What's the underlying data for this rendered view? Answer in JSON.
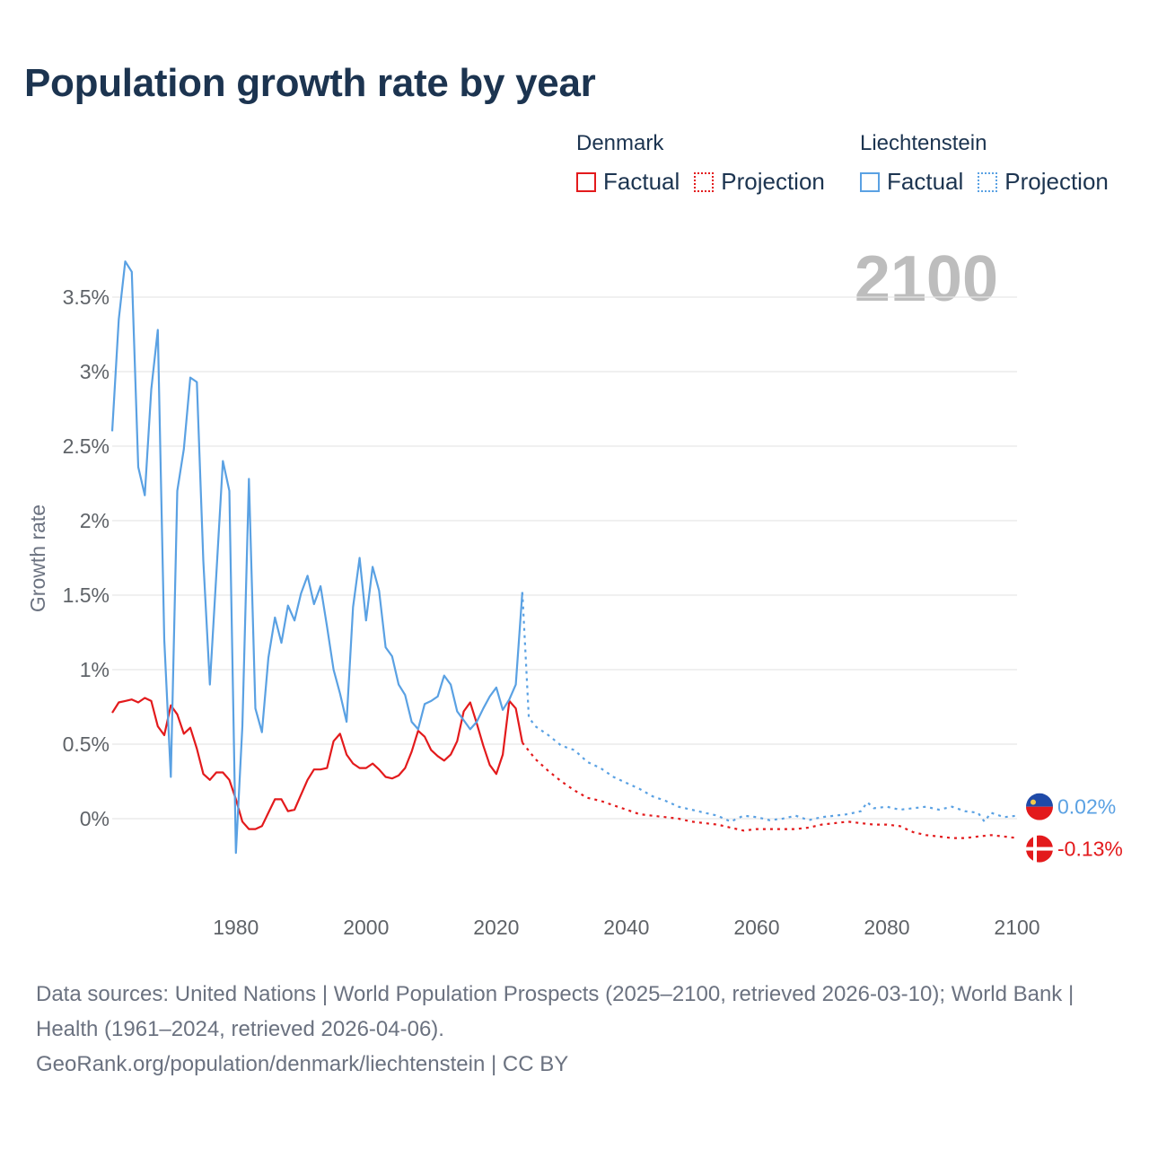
{
  "title": "Population growth rate by year",
  "year_display": "2100",
  "legend": {
    "groups": [
      {
        "name": "Denmark",
        "color": "#e31a1c",
        "factual_label": "Factual",
        "projection_label": "Projection"
      },
      {
        "name": "Liechtenstein",
        "color": "#5aa1e3",
        "factual_label": "Factual",
        "projection_label": "Projection"
      }
    ]
  },
  "footer": {
    "sources": "Data sources: United Nations | World Population Prospects (2025–2100, retrieved 2026-03-10); World Bank | Health (1961–2024, retrieved 2026-04-06).",
    "credit": "GeoRank.org/population/denmark/liechtenstein | CC BY"
  },
  "chart_data": {
    "type": "line",
    "title": "Population growth rate by year",
    "xlabel": "",
    "ylabel": "Growth rate",
    "xlim": [
      1961,
      2100
    ],
    "ylim": [
      -0.5,
      3.75
    ],
    "x_ticks": [
      1980,
      2000,
      2020,
      2040,
      2060,
      2080,
      2100
    ],
    "y_ticks": [
      0,
      0.5,
      1,
      1.5,
      2,
      2.5,
      3,
      3.5
    ],
    "y_tick_labels": [
      "0%",
      "0.5%",
      "1%",
      "1.5%",
      "2%",
      "2.5%",
      "3%",
      "3.5%"
    ],
    "grid": true,
    "series": [
      {
        "name": "Denmark",
        "color": "#e31a1c",
        "end_label": "-0.13%",
        "factual": {
          "x": [
            1961,
            1962,
            1963,
            1964,
            1965,
            1966,
            1967,
            1968,
            1969,
            1970,
            1971,
            1972,
            1973,
            1974,
            1975,
            1976,
            1977,
            1978,
            1979,
            1980,
            1981,
            1982,
            1983,
            1984,
            1985,
            1986,
            1987,
            1988,
            1989,
            1990,
            1991,
            1992,
            1993,
            1994,
            1995,
            1996,
            1997,
            1998,
            1999,
            2000,
            2001,
            2002,
            2003,
            2004,
            2005,
            2006,
            2007,
            2008,
            2009,
            2010,
            2011,
            2012,
            2013,
            2014,
            2015,
            2016,
            2017,
            2018,
            2019,
            2020,
            2021,
            2022,
            2023,
            2024
          ],
          "y": [
            0.71,
            0.78,
            0.79,
            0.8,
            0.78,
            0.81,
            0.79,
            0.62,
            0.56,
            0.76,
            0.7,
            0.57,
            0.61,
            0.47,
            0.3,
            0.26,
            0.31,
            0.31,
            0.26,
            0.13,
            -0.02,
            -0.07,
            -0.07,
            -0.05,
            0.04,
            0.13,
            0.13,
            0.05,
            0.06,
            0.16,
            0.26,
            0.33,
            0.33,
            0.34,
            0.52,
            0.57,
            0.43,
            0.37,
            0.34,
            0.34,
            0.37,
            0.33,
            0.28,
            0.27,
            0.29,
            0.34,
            0.45,
            0.59,
            0.55,
            0.46,
            0.42,
            0.39,
            0.43,
            0.52,
            0.72,
            0.78,
            0.64,
            0.49,
            0.36,
            0.3,
            0.43,
            0.79,
            0.74,
            0.51
          ]
        },
        "projection": {
          "x": [
            2024,
            2026,
            2028,
            2030,
            2032,
            2034,
            2036,
            2038,
            2040,
            2042,
            2044,
            2046,
            2048,
            2050,
            2052,
            2054,
            2056,
            2058,
            2060,
            2062,
            2064,
            2066,
            2068,
            2070,
            2072,
            2074,
            2076,
            2078,
            2080,
            2082,
            2084,
            2086,
            2088,
            2090,
            2092,
            2094,
            2096,
            2098,
            2100
          ],
          "y": [
            0.51,
            0.4,
            0.32,
            0.25,
            0.19,
            0.14,
            0.12,
            0.09,
            0.06,
            0.03,
            0.02,
            0.01,
            0.0,
            -0.02,
            -0.03,
            -0.04,
            -0.06,
            -0.08,
            -0.07,
            -0.07,
            -0.07,
            -0.07,
            -0.06,
            -0.04,
            -0.03,
            -0.02,
            -0.03,
            -0.04,
            -0.04,
            -0.05,
            -0.09,
            -0.11,
            -0.12,
            -0.13,
            -0.13,
            -0.12,
            -0.11,
            -0.12,
            -0.13
          ]
        }
      },
      {
        "name": "Liechtenstein",
        "color": "#5aa1e3",
        "end_label": "0.02%",
        "factual": {
          "x": [
            1961,
            1962,
            1963,
            1964,
            1965,
            1966,
            1967,
            1968,
            1969,
            1970,
            1971,
            1972,
            1973,
            1974,
            1975,
            1976,
            1977,
            1978,
            1979,
            1980,
            1981,
            1982,
            1983,
            1984,
            1985,
            1986,
            1987,
            1988,
            1989,
            1990,
            1991,
            1992,
            1993,
            1994,
            1995,
            1996,
            1997,
            1998,
            1999,
            2000,
            2001,
            2002,
            2003,
            2004,
            2005,
            2006,
            2007,
            2008,
            2009,
            2010,
            2011,
            2012,
            2013,
            2014,
            2015,
            2016,
            2017,
            2018,
            2019,
            2020,
            2021,
            2022,
            2023,
            2024
          ],
          "y": [
            2.6,
            3.35,
            3.74,
            3.67,
            2.36,
            2.17,
            2.88,
            3.28,
            1.2,
            0.28,
            2.2,
            2.48,
            2.96,
            2.93,
            1.73,
            0.9,
            1.64,
            2.4,
            2.2,
            -0.23,
            0.62,
            2.28,
            0.74,
            0.58,
            1.08,
            1.35,
            1.18,
            1.43,
            1.33,
            1.51,
            1.63,
            1.44,
            1.56,
            1.29,
            1.0,
            0.84,
            0.65,
            1.42,
            1.75,
            1.33,
            1.69,
            1.53,
            1.15,
            1.09,
            0.9,
            0.83,
            0.65,
            0.6,
            0.77,
            0.79,
            0.82,
            0.96,
            0.9,
            0.72,
            0.66,
            0.6,
            0.65,
            0.74,
            0.82,
            0.88,
            0.73,
            0.8,
            0.9,
            1.52
          ]
        },
        "projection": {
          "x": [
            2024,
            2025,
            2026,
            2028,
            2030,
            2032,
            2034,
            2036,
            2038,
            2040,
            2042,
            2044,
            2046,
            2048,
            2050,
            2052,
            2054,
            2056,
            2058,
            2060,
            2062,
            2064,
            2066,
            2068,
            2070,
            2072,
            2074,
            2076,
            2077,
            2078,
            2080,
            2082,
            2084,
            2086,
            2088,
            2090,
            2092,
            2094,
            2095,
            2096,
            2098,
            2100
          ],
          "y": [
            1.52,
            0.68,
            0.62,
            0.56,
            0.49,
            0.46,
            0.38,
            0.34,
            0.28,
            0.24,
            0.2,
            0.15,
            0.12,
            0.08,
            0.06,
            0.04,
            0.02,
            -0.02,
            0.02,
            0.01,
            -0.01,
            0.0,
            0.02,
            -0.01,
            0.01,
            0.02,
            0.03,
            0.05,
            0.11,
            0.07,
            0.08,
            0.06,
            0.07,
            0.08,
            0.06,
            0.08,
            0.05,
            0.04,
            -0.02,
            0.04,
            0.01,
            0.02
          ]
        }
      }
    ]
  }
}
